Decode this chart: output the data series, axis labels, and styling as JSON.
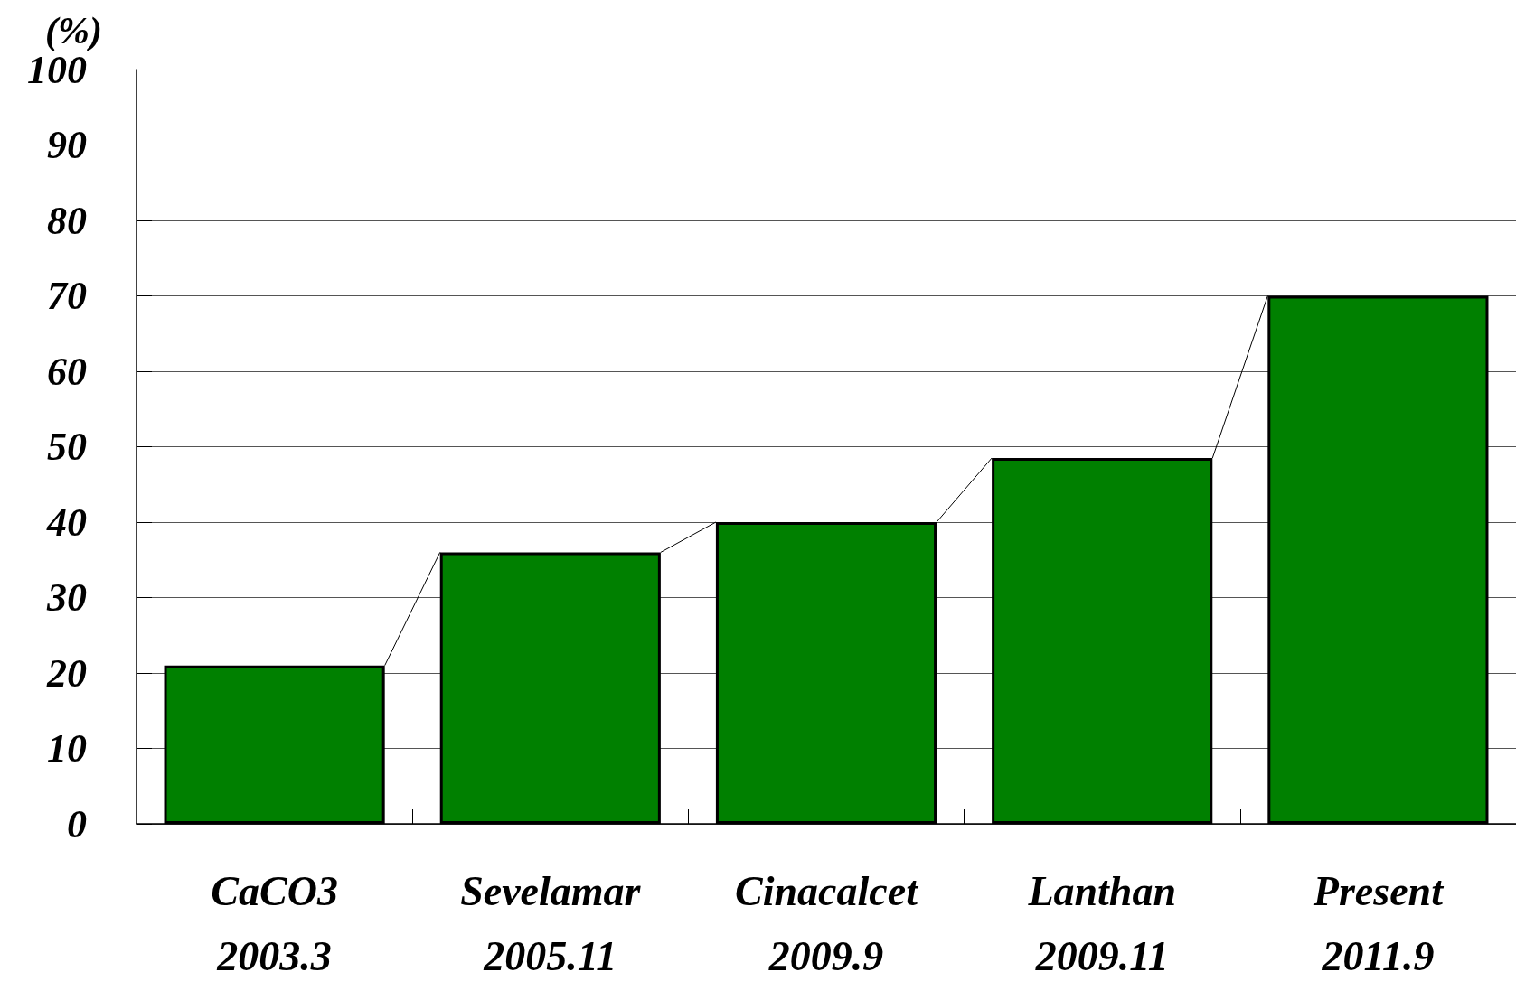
{
  "chart_data": {
    "type": "bar",
    "ylabel": "(%)",
    "categories": [
      "CaCO3\n2003.3",
      "Sevelamar\n2005.11",
      "Cinacalcet\n2009.9",
      "Lanthan\n2009.11",
      "Present\n2011.9"
    ],
    "values": [
      21,
      36,
      40,
      48.5,
      70
    ],
    "color": "#008000",
    "ylim": [
      0,
      100
    ],
    "yticks": [
      0,
      10,
      20,
      30,
      40,
      50,
      60,
      70,
      80,
      90,
      100
    ],
    "grid": "y"
  }
}
